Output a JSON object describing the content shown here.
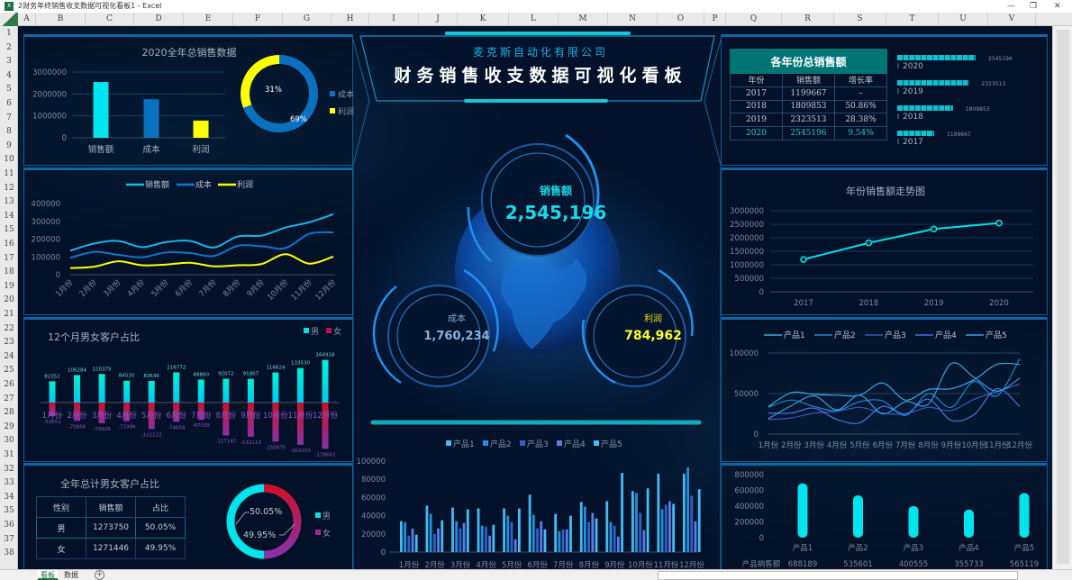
{
  "excel": {
    "window_title": "2财务年终销售收支数据可视化看板1 - Excel",
    "columns": [
      "A",
      "B",
      "C",
      "D",
      "E",
      "F",
      "G",
      "H",
      "I",
      "J",
      "K",
      "L",
      "M",
      "N",
      "O",
      "P",
      "Q",
      "R",
      "S",
      "T",
      "U",
      "V"
    ],
    "rows": [
      "1",
      "2",
      "3",
      "4",
      "5",
      "6",
      "7",
      "8",
      "9",
      "10",
      "11",
      "12",
      "13",
      "14",
      "15",
      "16",
      "17",
      "18",
      "19",
      "20",
      "21",
      "22",
      "23",
      "24",
      "25",
      "26",
      "27",
      "28",
      "29",
      "30",
      "31",
      "32",
      "33",
      "34",
      "35",
      "36",
      "37",
      "38"
    ],
    "sheet_tabs": [
      "看板",
      "数据"
    ],
    "active_sheet": "看板",
    "add_sheet": "+"
  },
  "header": {
    "company": "麦克斯自动化有限公司",
    "title": "财务销售收支数据可视化看板"
  },
  "kpi": {
    "sales": {
      "label": "销售额",
      "value": "2,545,196"
    },
    "cost": {
      "label": "成本",
      "value": "1,760,234"
    },
    "profit": {
      "label": "利润",
      "value": "784,962"
    }
  },
  "tables": {
    "year": {
      "title": "各年份总销售额",
      "headers": [
        "年份",
        "销售额",
        "增长率"
      ],
      "rows": [
        [
          "2017",
          "1199667",
          "–"
        ],
        [
          "2018",
          "1809853",
          "50.86%"
        ],
        [
          "2019",
          "2323513",
          "28.38%"
        ],
        [
          "2020",
          "2545196",
          "9.54%"
        ]
      ]
    },
    "gender": {
      "title": "全年总计男女客户占比",
      "headers": [
        "性别",
        "销售额",
        "占比"
      ],
      "rows": [
        [
          "男",
          "1273750",
          "50.05%"
        ],
        [
          "女",
          "1271446",
          "49.95%"
        ]
      ]
    }
  },
  "colors": {
    "accent": "#00e5f0",
    "cost": "#0a70c0",
    "profit": "#ffff00",
    "male": "#00e8e8",
    "female": "#a0208a",
    "background": "#03122a"
  },
  "chart_data": [
    {
      "id": "annual",
      "type": "bar",
      "title": "2020全年总销售数据",
      "categories": [
        "销售额",
        "成本",
        "利润"
      ],
      "values": [
        2545196,
        1760234,
        784962
      ],
      "colors": [
        "#00e5f0",
        "#0a70c0",
        "#ffff00"
      ],
      "ylim": [
        0,
        3000000
      ],
      "yticks": [
        0,
        1000000,
        2000000,
        3000000
      ],
      "grid": true
    },
    {
      "id": "annual_donut",
      "type": "pie",
      "categories": [
        "成本",
        "利润"
      ],
      "values": [
        69,
        31
      ],
      "labels": [
        "69%",
        "31%"
      ],
      "colors": [
        "#0a70c0",
        "#ffff00"
      ],
      "legend": "right"
    },
    {
      "id": "monthly",
      "type": "line",
      "categories": [
        "1月份",
        "2月份",
        "3月份",
        "4月份",
        "5月份",
        "6月份",
        "7月份",
        "8月份",
        "9月份",
        "10月份",
        "11月份",
        "12月份"
      ],
      "series": [
        {
          "name": "销售额",
          "color": "#18b4f0",
          "values": [
            135000,
            175000,
            190000,
            155000,
            183000,
            190000,
            153000,
            215000,
            220000,
            265000,
            295000,
            340000
          ]
        },
        {
          "name": "成本",
          "color": "#0a78d0",
          "values": [
            95000,
            128000,
            112000,
            98000,
            125000,
            122000,
            105000,
            162000,
            160000,
            150000,
            230000,
            238000
          ]
        },
        {
          "name": "利润",
          "color": "#ffff00",
          "values": [
            37000,
            45000,
            75000,
            53000,
            57000,
            67000,
            47000,
            53000,
            60000,
            115000,
            62000,
            102000
          ]
        }
      ],
      "ylim": [
        0,
        400000
      ],
      "yticks": [
        0,
        100000,
        200000,
        300000,
        400000
      ],
      "legend": "top"
    },
    {
      "id": "gender_monthly",
      "type": "bar",
      "title": "12个月男女客户占比",
      "categories": [
        "1月份",
        "2月份",
        "3月份",
        "4月份",
        "5月份",
        "6月份",
        "7月份",
        "8月份",
        "9月份",
        "10月份",
        "11月份",
        "12月份"
      ],
      "series": [
        {
          "name": "男",
          "values": [
            82352,
            106284,
            110375,
            84520,
            83636,
            116772,
            88860,
            92072,
            91807,
            116624,
            133530,
            164918
          ]
        },
        {
          "name": "女",
          "values": [
            -52651,
            -70856,
            -79926,
            -71998,
            -102222,
            -74658,
            -67035,
            -127147,
            -132113,
            -150975,
            -163203,
            -178662
          ]
        }
      ],
      "legend": "top-right"
    },
    {
      "id": "gender_donut",
      "type": "pie",
      "categories": [
        "男",
        "女"
      ],
      "values": [
        50.05,
        49.95
      ],
      "labels": [
        "50.05%",
        "49.95%"
      ],
      "legend": "right"
    },
    {
      "id": "product_monthly_bar",
      "type": "bar",
      "categories": [
        "1月份",
        "2月份",
        "3月份",
        "4月份",
        "5月份",
        "6月份",
        "7月份",
        "8月份",
        "9月份",
        "10月份",
        "11月份",
        "12月份"
      ],
      "series": [
        {
          "name": "产品1",
          "color": "#48b8f0",
          "values": [
            34000,
            51000,
            49000,
            48000,
            48000,
            63000,
            42000,
            55000,
            56000,
            67000,
            86000,
            86000
          ]
        },
        {
          "name": "产品2",
          "color": "#1a90e0",
          "values": [
            33000,
            42000,
            34000,
            29000,
            40000,
            41000,
            23000,
            50000,
            33000,
            65000,
            47000,
            93000
          ]
        },
        {
          "name": "产品3",
          "color": "#3460c4",
          "values": [
            18000,
            20000,
            26000,
            28000,
            33000,
            26000,
            25000,
            33000,
            29000,
            43000,
            52000,
            62000
          ]
        },
        {
          "name": "产品4",
          "color": "#5a7cec",
          "values": [
            26000,
            26000,
            32000,
            18000,
            14000,
            34000,
            25000,
            43000,
            17000,
            24000,
            56000,
            34000
          ]
        },
        {
          "name": "产品5",
          "color": "#44bcf4",
          "values": [
            19000,
            35000,
            47000,
            30000,
            48000,
            25000,
            40000,
            37000,
            87000,
            70000,
            53000,
            69000
          ]
        }
      ],
      "ylim": [
        0,
        100000
      ],
      "yticks": [
        0,
        20000,
        40000,
        60000,
        80000,
        100000
      ],
      "legend": "top"
    },
    {
      "id": "year_trend",
      "type": "line",
      "title": "年份销售额走势图",
      "categories": [
        "2017",
        "2018",
        "2019",
        "2020"
      ],
      "values": [
        1199667,
        1809853,
        2323513,
        2545196
      ],
      "ylim": [
        0,
        3000000
      ],
      "yticks": [
        0,
        500000,
        1000000,
        1500000,
        2000000,
        2500000,
        3000000
      ],
      "grid": true
    },
    {
      "id": "product_monthly_line",
      "type": "line",
      "categories": [
        "1月份",
        "2月份",
        "3月份",
        "4月份",
        "5月份",
        "6月份",
        "7月份",
        "8月份",
        "9月份",
        "10月份",
        "11月份",
        "12月份"
      ],
      "series_ref": "product_monthly_bar",
      "ylim": [
        0,
        100000
      ],
      "yticks": [
        0,
        50000,
        100000
      ],
      "legend": "top"
    },
    {
      "id": "product_totals",
      "type": "bar",
      "categories": [
        "产品1",
        "产品2",
        "产品3",
        "产品4",
        "产品5"
      ],
      "values": [
        688189,
        535601,
        400555,
        355733,
        565119
      ],
      "row_label": "产品销售额",
      "ylim": [
        0,
        800000
      ],
      "yticks": [
        0,
        200000,
        400000,
        600000,
        800000
      ]
    },
    {
      "id": "year_hbar",
      "type": "bar",
      "categories": [
        "2020",
        "2019",
        "2018",
        "2017"
      ],
      "values": [
        2545196,
        2323513,
        1809853,
        1199667
      ],
      "color": "#10c0d0"
    }
  ]
}
